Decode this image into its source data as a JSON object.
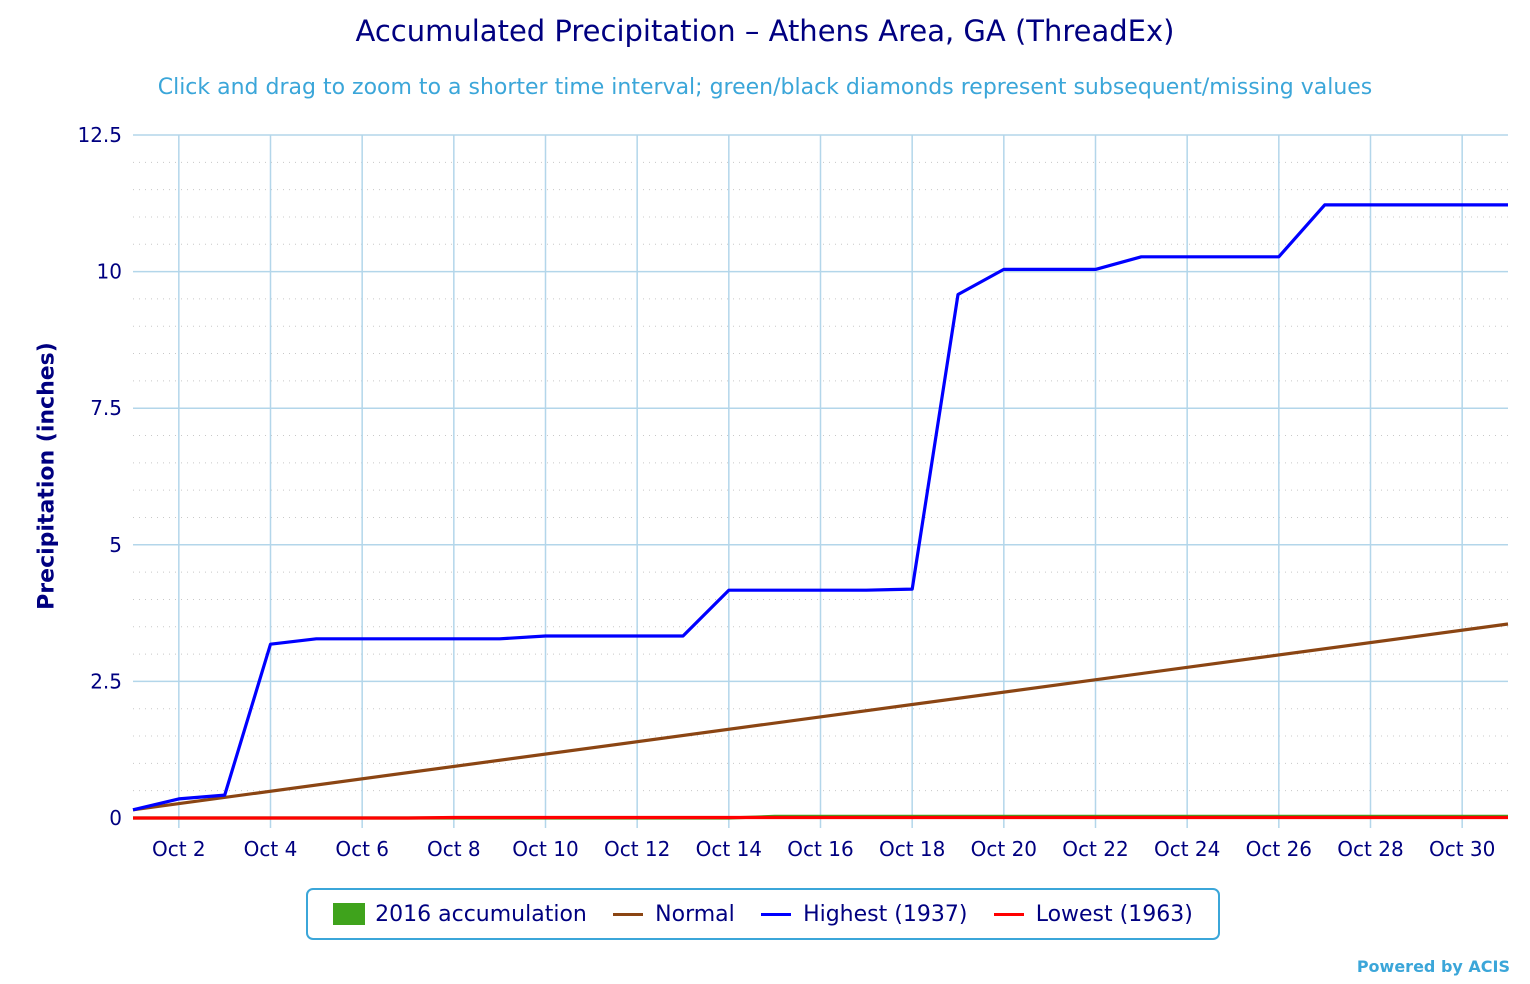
{
  "chart_data": {
    "type": "line",
    "title": "Accumulated Precipitation – Athens Area, GA (ThreadEx)",
    "subtitle": "Click and drag to zoom to a shorter time interval; green/black diamonds represent subsequent/missing values",
    "xlabel": "",
    "ylabel": "Precipitation (inches)",
    "x_ticks": [
      "Oct 2",
      "Oct 4",
      "Oct 6",
      "Oct 8",
      "Oct 10",
      "Oct 12",
      "Oct 14",
      "Oct 16",
      "Oct 18",
      "Oct 20",
      "Oct 22",
      "Oct 24",
      "Oct 26",
      "Oct 28",
      "Oct 30"
    ],
    "y_ticks": [
      "0",
      "2.5",
      "5",
      "7.5",
      "10",
      "12.5"
    ],
    "ylim": [
      0,
      12.5
    ],
    "xlim": [
      1,
      31
    ],
    "grid": true,
    "legend_position": "bottom",
    "series": [
      {
        "name": "2016 accumulation",
        "color": "#3fa31c",
        "x": [
          1,
          2,
          3,
          4,
          5,
          6,
          7,
          8,
          9,
          10,
          11,
          12,
          13,
          14,
          15,
          16,
          17,
          18,
          19,
          20,
          21,
          22,
          23,
          24,
          25,
          26,
          27,
          28,
          29,
          30,
          31
        ],
        "values": [
          0,
          0,
          0,
          0,
          0,
          0,
          0,
          0,
          0,
          0,
          0,
          0,
          0,
          0,
          0.03,
          0.03,
          0.03,
          0.03,
          0.03,
          0.03,
          0.03,
          0.03,
          0.03,
          0.03,
          0.03,
          0.03,
          0.03,
          0.03,
          0.03,
          0.03,
          0.03
        ]
      },
      {
        "name": "Normal",
        "color": "#8b4513",
        "x": [
          1,
          31
        ],
        "values": [
          0.15,
          3.55
        ]
      },
      {
        "name": "Highest (1937)",
        "color": "#0000ff",
        "x": [
          1,
          2,
          3,
          4,
          5,
          6,
          7,
          8,
          9,
          10,
          11,
          12,
          13,
          14,
          15,
          16,
          17,
          18,
          19,
          20,
          21,
          22,
          23,
          24,
          25,
          26,
          27,
          28,
          29,
          30,
          31
        ],
        "values": [
          0.15,
          0.35,
          0.42,
          3.18,
          3.28,
          3.28,
          3.28,
          3.28,
          3.28,
          3.33,
          3.33,
          3.33,
          3.33,
          4.17,
          4.17,
          4.17,
          4.17,
          4.19,
          9.58,
          10.04,
          10.04,
          10.04,
          10.27,
          10.27,
          10.27,
          10.27,
          11.22,
          11.22,
          11.22,
          11.22,
          11.22
        ]
      },
      {
        "name": "Lowest (1963)",
        "color": "#ff0000",
        "x": [
          1,
          2,
          3,
          4,
          5,
          6,
          7,
          8,
          9,
          10,
          11,
          12,
          13,
          14,
          15,
          16,
          17,
          18,
          19,
          20,
          21,
          22,
          23,
          24,
          25,
          26,
          27,
          28,
          29,
          30,
          31
        ],
        "values": [
          0,
          0,
          0,
          0,
          0,
          0,
          0,
          0.01,
          0.01,
          0.01,
          0.01,
          0.01,
          0.01,
          0.01,
          0.01,
          0.01,
          0.01,
          0.01,
          0.01,
          0.01,
          0.01,
          0.01,
          0.01,
          0.01,
          0.01,
          0.01,
          0.01,
          0.01,
          0.01,
          0.01,
          0.01
        ]
      }
    ]
  },
  "credits": "Powered by ACIS"
}
